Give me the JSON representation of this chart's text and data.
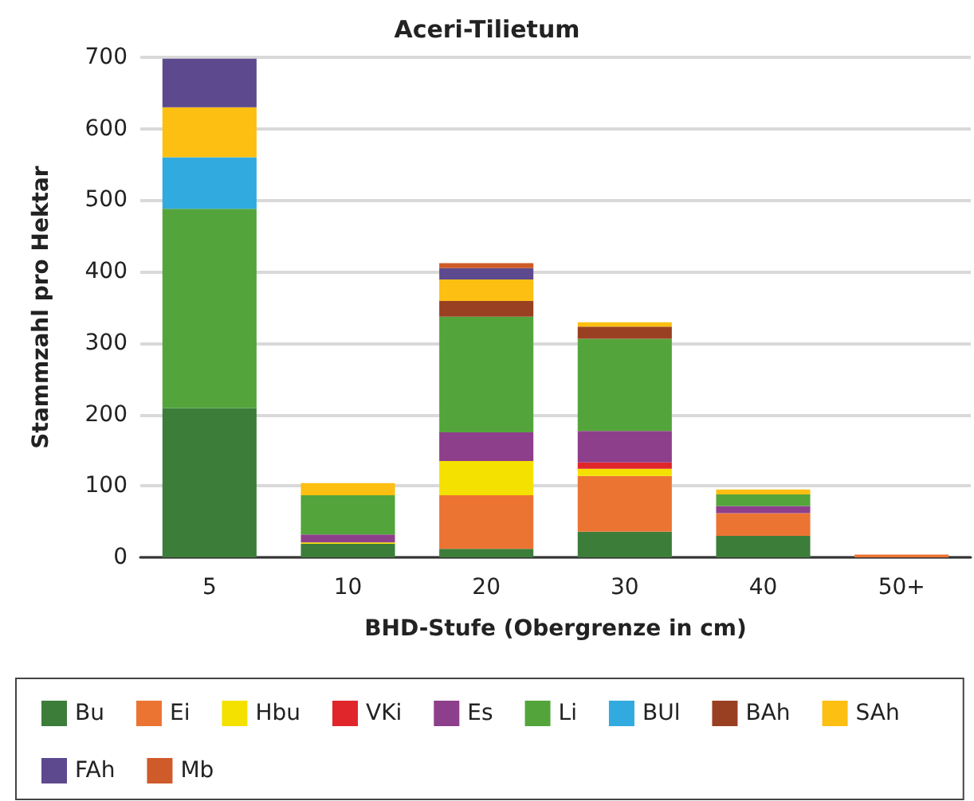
{
  "chart_data": {
    "type": "bar",
    "stacked": true,
    "title": "Aceri-Tilietum",
    "xlabel": "BHD-Stufe (Obergrenze in cm)",
    "ylabel": "Stammzahl pro Hektar",
    "categories": [
      "5",
      "10",
      "20",
      "30",
      "40",
      "50+"
    ],
    "ylim": [
      0,
      700
    ],
    "yticks": [
      0,
      100,
      200,
      300,
      400,
      500,
      600,
      700
    ],
    "grid": "y",
    "legend": "bottom",
    "series": [
      {
        "name": "Bu",
        "color": "#3d7d3a",
        "values": [
          209,
          19,
          12,
          36,
          30,
          null
        ]
      },
      {
        "name": "Ei",
        "color": "#ec7433",
        "values": [
          null,
          null,
          75,
          78,
          32,
          4
        ]
      },
      {
        "name": "Hbu",
        "color": "#f5e100",
        "values": [
          null,
          2,
          48,
          10,
          null,
          null
        ]
      },
      {
        "name": "VKi",
        "color": "#e0262b",
        "values": [
          null,
          null,
          null,
          9,
          null,
          null
        ]
      },
      {
        "name": "Es",
        "color": "#8e3f8c",
        "values": [
          null,
          11,
          40,
          44,
          10,
          null
        ]
      },
      {
        "name": "Li",
        "color": "#53a53b",
        "values": [
          279,
          55,
          162,
          129,
          16,
          null
        ]
      },
      {
        "name": "BUl",
        "color": "#30aadf",
        "values": [
          72,
          null,
          null,
          null,
          null,
          null
        ]
      },
      {
        "name": "BAh",
        "color": "#9a4022",
        "values": [
          null,
          null,
          22,
          17,
          null,
          null
        ]
      },
      {
        "name": "SAh",
        "color": "#fcbf12",
        "values": [
          70,
          17,
          30,
          6,
          7,
          null
        ]
      },
      {
        "name": "FAh",
        "color": "#5d4a8e",
        "values": [
          68,
          null,
          16,
          null,
          null,
          null
        ]
      },
      {
        "name": "Mb",
        "color": "#cf5a2a",
        "values": [
          null,
          null,
          7,
          null,
          null,
          null
        ]
      }
    ]
  }
}
